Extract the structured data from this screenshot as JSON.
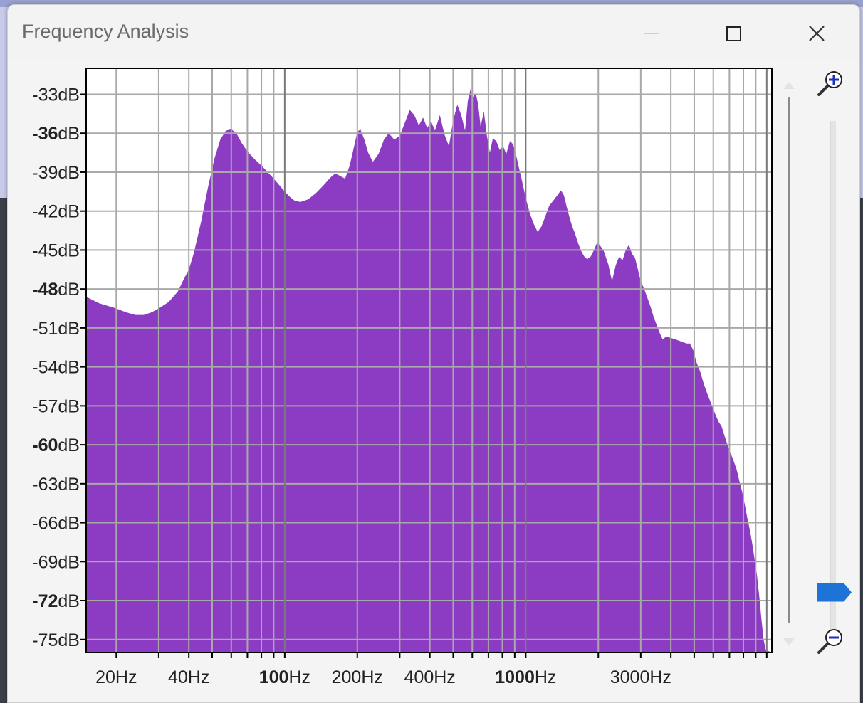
{
  "window": {
    "title": "Frequency Analysis",
    "controls": {
      "minimize": "minimize",
      "maximize": "maximize",
      "close": "close"
    }
  },
  "colors": {
    "spectrum": "#8c3cc2",
    "grid": "#a8a8a8",
    "zoom_thumb": "#1d74d6"
  },
  "icons": [
    "zoom-in-icon",
    "zoom-out-icon",
    "close-icon",
    "maximize-icon",
    "minimize-icon"
  ],
  "chart_data": {
    "type": "area",
    "xscale": "log",
    "xlim": [
      15,
      10500
    ],
    "ylim": [
      -76,
      -31
    ],
    "y_ticks": [
      {
        "value": -33,
        "num": "-33",
        "unit": "dB",
        "bold": false
      },
      {
        "value": -36,
        "num": "-36",
        "unit": "dB",
        "bold": true
      },
      {
        "value": -39,
        "num": "-39",
        "unit": "dB",
        "bold": false
      },
      {
        "value": -42,
        "num": "-42",
        "unit": "dB",
        "bold": false
      },
      {
        "value": -45,
        "num": "-45",
        "unit": "dB",
        "bold": false
      },
      {
        "value": -48,
        "num": "-48",
        "unit": "dB",
        "bold": true
      },
      {
        "value": -51,
        "num": "-51",
        "unit": "dB",
        "bold": false
      },
      {
        "value": -54,
        "num": "-54",
        "unit": "dB",
        "bold": false
      },
      {
        "value": -57,
        "num": "-57",
        "unit": "dB",
        "bold": false
      },
      {
        "value": -60,
        "num": "-60",
        "unit": "dB",
        "bold": true
      },
      {
        "value": -63,
        "num": "-63",
        "unit": "dB",
        "bold": false
      },
      {
        "value": -66,
        "num": "-66",
        "unit": "dB",
        "bold": false
      },
      {
        "value": -69,
        "num": "-69",
        "unit": "dB",
        "bold": false
      },
      {
        "value": -72,
        "num": "-72",
        "unit": "dB",
        "bold": true
      },
      {
        "value": -75,
        "num": "-75",
        "unit": "dB",
        "bold": false
      }
    ],
    "x_tick_labels": [
      {
        "value": 20,
        "num": "20",
        "unit": "Hz",
        "bold": false
      },
      {
        "value": 40,
        "num": "40",
        "unit": "Hz",
        "bold": false
      },
      {
        "value": 100,
        "num": "100",
        "unit": "Hz",
        "bold": true
      },
      {
        "value": 200,
        "num": "200",
        "unit": "Hz",
        "bold": false
      },
      {
        "value": 400,
        "num": "400",
        "unit": "Hz",
        "bold": false
      },
      {
        "value": 1000,
        "num": "1000",
        "unit": "Hz",
        "bold": true
      },
      {
        "value": 3000,
        "num": "3000",
        "unit": "Hz",
        "bold": false
      }
    ],
    "x_gridlines": [
      20,
      30,
      40,
      50,
      60,
      70,
      80,
      90,
      100,
      200,
      300,
      400,
      500,
      600,
      700,
      800,
      900,
      1000,
      2000,
      3000,
      4000,
      5000,
      6000,
      7000,
      8000,
      9000,
      10000
    ],
    "spectrum": [
      [
        15,
        -48.6
      ],
      [
        17,
        -49.1
      ],
      [
        20,
        -49.5
      ],
      [
        22,
        -49.8
      ],
      [
        24,
        -50.0
      ],
      [
        26,
        -50.0
      ],
      [
        28,
        -49.8
      ],
      [
        30,
        -49.5
      ],
      [
        33,
        -49.0
      ],
      [
        36,
        -48.2
      ],
      [
        38,
        -47.3
      ],
      [
        40,
        -46.5
      ],
      [
        42,
        -45.2
      ],
      [
        45,
        -42.8
      ],
      [
        48,
        -40.2
      ],
      [
        51,
        -38.0
      ],
      [
        54,
        -36.5
      ],
      [
        57,
        -35.8
      ],
      [
        60,
        -35.7
      ],
      [
        63,
        -36.0
      ],
      [
        66,
        -36.7
      ],
      [
        70,
        -37.4
      ],
      [
        75,
        -38.0
      ],
      [
        80,
        -38.5
      ],
      [
        85,
        -39.0
      ],
      [
        90,
        -39.5
      ],
      [
        95,
        -40.0
      ],
      [
        100,
        -40.5
      ],
      [
        105,
        -40.9
      ],
      [
        110,
        -41.2
      ],
      [
        116,
        -41.3
      ],
      [
        125,
        -41.1
      ],
      [
        135,
        -40.6
      ],
      [
        145,
        -40.0
      ],
      [
        155,
        -39.4
      ],
      [
        162,
        -39.1
      ],
      [
        170,
        -39.3
      ],
      [
        178,
        -39.5
      ],
      [
        186,
        -38.5
      ],
      [
        194,
        -37.0
      ],
      [
        200,
        -35.9
      ],
      [
        206,
        -35.7
      ],
      [
        214,
        -36.5
      ],
      [
        222,
        -37.5
      ],
      [
        232,
        -38.2
      ],
      [
        245,
        -37.6
      ],
      [
        258,
        -36.5
      ],
      [
        270,
        -36.0
      ],
      [
        285,
        -36.5
      ],
      [
        300,
        -36.2
      ],
      [
        315,
        -35.2
      ],
      [
        330,
        -34.2
      ],
      [
        345,
        -34.6
      ],
      [
        360,
        -35.4
      ],
      [
        375,
        -34.8
      ],
      [
        390,
        -35.6
      ],
      [
        405,
        -35.1
      ],
      [
        420,
        -35.8
      ],
      [
        440,
        -34.6
      ],
      [
        460,
        -36.1
      ],
      [
        480,
        -37.0
      ],
      [
        500,
        -35.0
      ],
      [
        520,
        -33.8
      ],
      [
        540,
        -34.6
      ],
      [
        560,
        -35.8
      ],
      [
        575,
        -33.5
      ],
      [
        590,
        -32.6
      ],
      [
        605,
        -33.2
      ],
      [
        620,
        -32.9
      ],
      [
        635,
        -33.8
      ],
      [
        650,
        -35.5
      ],
      [
        670,
        -34.3
      ],
      [
        690,
        -36.2
      ],
      [
        710,
        -37.5
      ],
      [
        730,
        -36.4
      ],
      [
        755,
        -36.6
      ],
      [
        780,
        -37.3
      ],
      [
        805,
        -37.0
      ],
      [
        830,
        -37.6
      ],
      [
        860,
        -36.6
      ],
      [
        880,
        -36.8
      ],
      [
        900,
        -37.2
      ],
      [
        930,
        -38.4
      ],
      [
        960,
        -39.5
      ],
      [
        1000,
        -41.0
      ],
      [
        1040,
        -42.2
      ],
      [
        1080,
        -43.0
      ],
      [
        1120,
        -43.6
      ],
      [
        1160,
        -43.2
      ],
      [
        1200,
        -42.5
      ],
      [
        1250,
        -41.6
      ],
      [
        1300,
        -41.2
      ],
      [
        1350,
        -40.8
      ],
      [
        1400,
        -40.4
      ],
      [
        1440,
        -40.8
      ],
      [
        1480,
        -41.7
      ],
      [
        1520,
        -42.5
      ],
      [
        1560,
        -43.2
      ],
      [
        1600,
        -43.7
      ],
      [
        1650,
        -44.5
      ],
      [
        1700,
        -45.1
      ],
      [
        1750,
        -45.5
      ],
      [
        1800,
        -45.7
      ],
      [
        1860,
        -45.5
      ],
      [
        1920,
        -45.0
      ],
      [
        1980,
        -44.4
      ],
      [
        2040,
        -44.7
      ],
      [
        2100,
        -45.0
      ],
      [
        2200,
        -46.1
      ],
      [
        2280,
        -47.4
      ],
      [
        2360,
        -46.2
      ],
      [
        2440,
        -45.5
      ],
      [
        2520,
        -45.8
      ],
      [
        2600,
        -45.0
      ],
      [
        2680,
        -44.6
      ],
      [
        2760,
        -45.3
      ],
      [
        2840,
        -45.6
      ],
      [
        2920,
        -46.5
      ],
      [
        3000,
        -47.4
      ],
      [
        3100,
        -48.0
      ],
      [
        3200,
        -48.7
      ],
      [
        3300,
        -49.4
      ],
      [
        3400,
        -50.2
      ],
      [
        3500,
        -50.8
      ],
      [
        3600,
        -51.4
      ],
      [
        3700,
        -51.9
      ],
      [
        3800,
        -51.7
      ],
      [
        3900,
        -51.7
      ],
      [
        4050,
        -51.8
      ],
      [
        4200,
        -51.9
      ],
      [
        4350,
        -52.0
      ],
      [
        4500,
        -52.1
      ],
      [
        4650,
        -52.2
      ],
      [
        4800,
        -52.2
      ],
      [
        4950,
        -52.7
      ],
      [
        5100,
        -53.6
      ],
      [
        5300,
        -54.4
      ],
      [
        5500,
        -55.4
      ],
      [
        5700,
        -56.2
      ],
      [
        5900,
        -56.9
      ],
      [
        6100,
        -57.6
      ],
      [
        6300,
        -58.2
      ],
      [
        6500,
        -58.6
      ],
      [
        6700,
        -59.4
      ],
      [
        6900,
        -60.1
      ],
      [
        7100,
        -60.7
      ],
      [
        7300,
        -61.3
      ],
      [
        7500,
        -61.9
      ],
      [
        7700,
        -62.8
      ],
      [
        7900,
        -63.6
      ],
      [
        8100,
        -64.6
      ],
      [
        8300,
        -65.6
      ],
      [
        8500,
        -66.5
      ],
      [
        8700,
        -67.6
      ],
      [
        8900,
        -68.8
      ],
      [
        9100,
        -70.0
      ],
      [
        9300,
        -71.6
      ],
      [
        9500,
        -73.4
      ],
      [
        9700,
        -75.0
      ],
      [
        9900,
        -75.8
      ],
      [
        10200,
        -75.9
      ],
      [
        10500,
        -76.0
      ]
    ]
  },
  "zoom": {
    "level": 0.05
  }
}
